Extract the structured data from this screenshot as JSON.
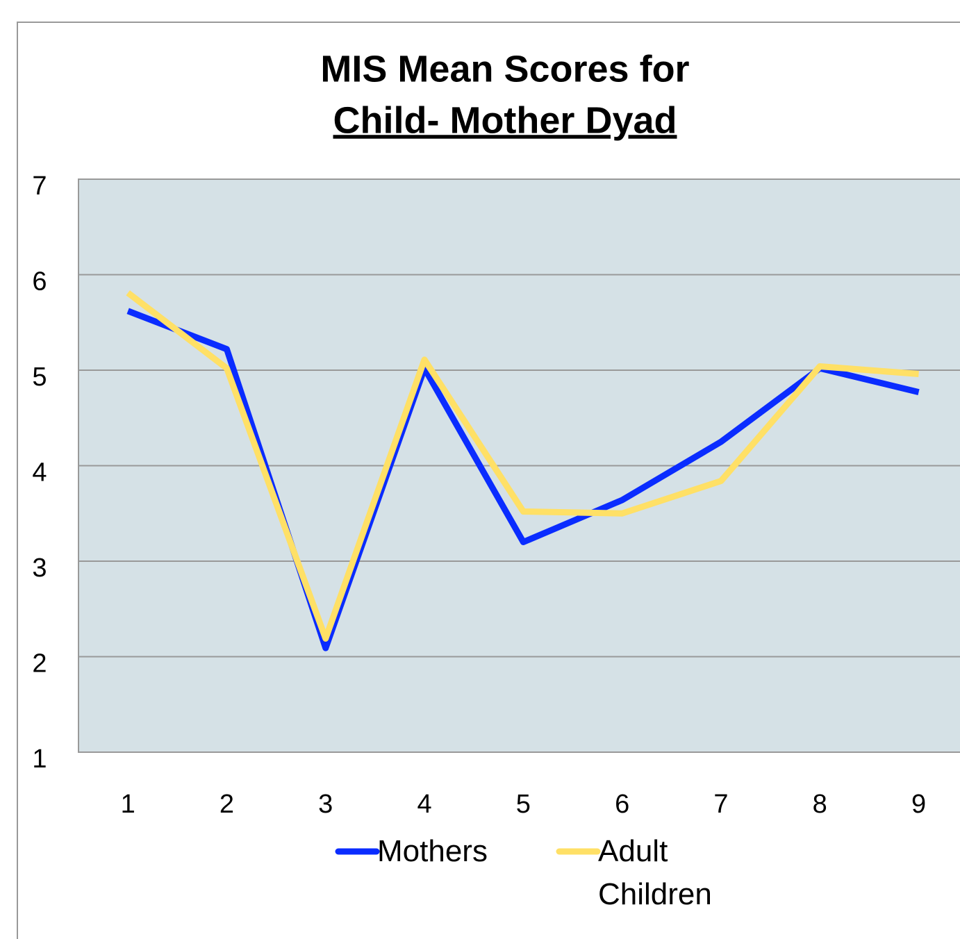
{
  "chart_data": {
    "type": "line",
    "title": [
      "MIS Mean Scores for",
      "Child- Mother Dyad"
    ],
    "x": [
      1,
      2,
      3,
      4,
      5,
      6,
      7,
      8,
      9
    ],
    "xlim": [
      0.5,
      9.5
    ],
    "series": [
      {
        "name": "Mothers",
        "color": "#0a2cff",
        "values": [
          5.62,
          5.22,
          2.09,
          5.02,
          3.2,
          3.64,
          4.25,
          5.02,
          4.77
        ]
      },
      {
        "name": "Adult Children",
        "color": "#ffe066",
        "values": [
          5.81,
          5.02,
          2.19,
          5.11,
          3.52,
          3.5,
          3.84,
          5.04,
          4.96
        ]
      }
    ],
    "ylim": [
      1,
      7
    ],
    "yticks": [
      1,
      2,
      3,
      4,
      5,
      6,
      7
    ],
    "grid": true
  }
}
